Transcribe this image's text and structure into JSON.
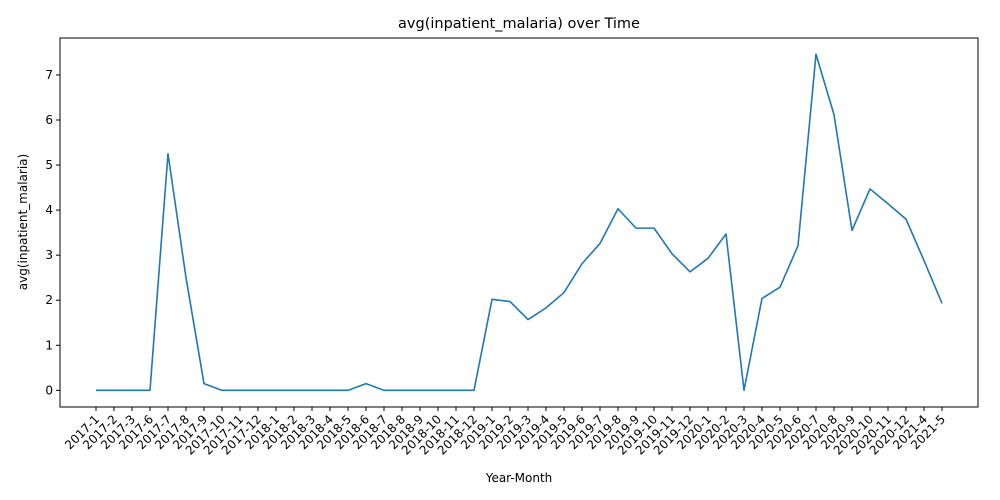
{
  "chart_data": {
    "type": "line",
    "title": "avg(inpatient_malaria) over Time",
    "xlabel": "Year-Month",
    "ylabel": "avg(inpatient_malaria)",
    "ylim": [
      -0.37,
      7.82
    ],
    "yticks": [
      0,
      1,
      2,
      3,
      4,
      5,
      6,
      7
    ],
    "grid": false,
    "legend": "none",
    "line_color": "#1f77b4",
    "categories": [
      "2017-1",
      "2017-2",
      "2017-3",
      "2017-6",
      "2017-7",
      "2017-8",
      "2017-9",
      "2017-10",
      "2017-11",
      "2017-12",
      "2018-1",
      "2018-2",
      "2018-3",
      "2018-4",
      "2018-5",
      "2018-6",
      "2018-7",
      "2018-8",
      "2018-9",
      "2018-10",
      "2018-11",
      "2018-12",
      "2019-1",
      "2019-2",
      "2019-3",
      "2019-4",
      "2019-5",
      "2019-6",
      "2019-7",
      "2019-8",
      "2019-9",
      "2019-10",
      "2019-11",
      "2019-12",
      "2020-1",
      "2020-2",
      "2020-3",
      "2020-4",
      "2020-5",
      "2020-6",
      "2020-7",
      "2020-8",
      "2020-9",
      "2020-10",
      "2020-11",
      "2020-12",
      "2021-4",
      "2021-5"
    ],
    "series": [
      {
        "values": [
          0,
          0,
          0,
          0,
          5.25,
          2.5,
          0.15,
          0,
          0,
          0,
          0,
          0,
          0,
          0,
          0,
          0.15,
          0,
          0,
          0,
          0,
          0,
          0,
          2.02,
          1.97,
          1.57,
          1.83,
          2.17,
          2.81,
          3.26,
          4.03,
          3.6,
          3.6,
          3.03,
          2.63,
          2.93,
          3.47,
          0,
          2.04,
          2.29,
          3.21,
          7.46,
          6.12,
          3.55,
          4.47,
          4.14,
          3.8,
          2.88,
          1.93
        ]
      }
    ]
  }
}
